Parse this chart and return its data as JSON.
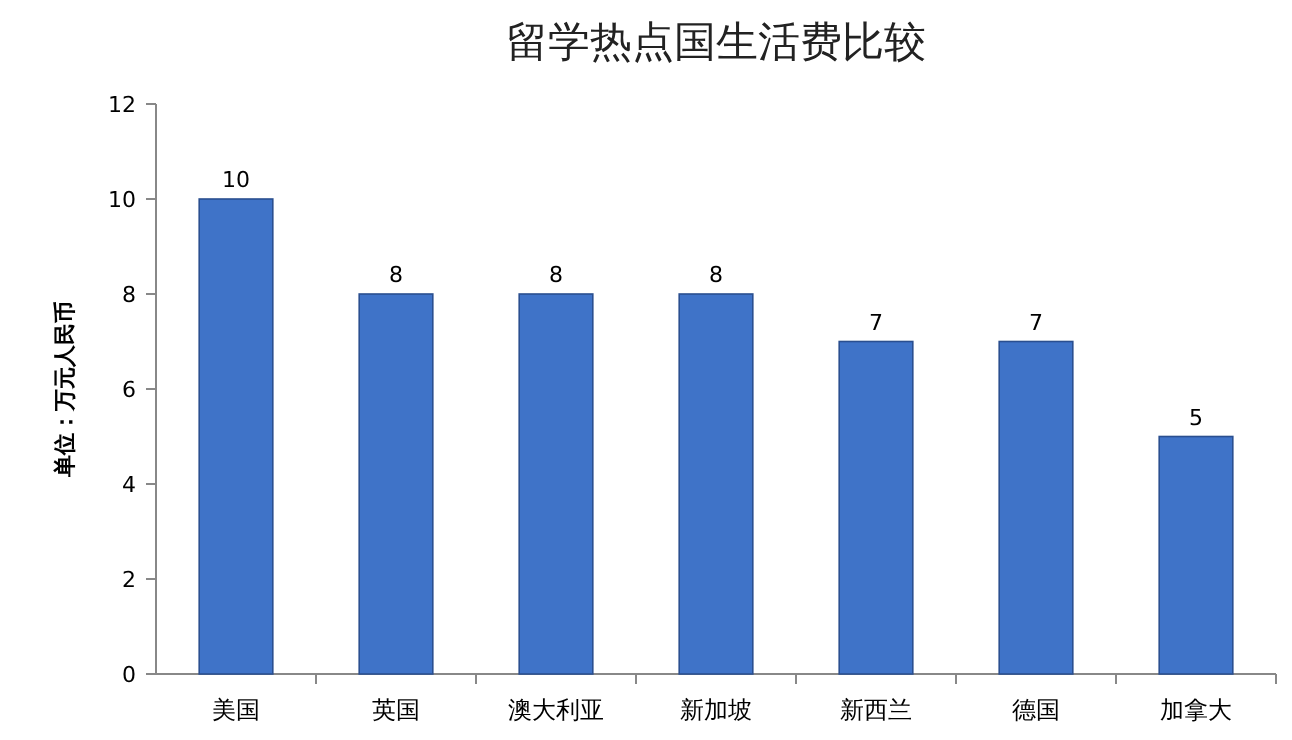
{
  "chart_data": {
    "type": "bar",
    "title": "留学热点国生活费比较",
    "ylabel": "单位：万元人民币",
    "categories": [
      "美国",
      "英国",
      "澳大利亚",
      "新加坡",
      "新西兰",
      "德国",
      "加拿大"
    ],
    "values": [
      10,
      8,
      8,
      8,
      7,
      7,
      5
    ],
    "color": "#3f73c8",
    "ylim": [
      0,
      12
    ],
    "yticks": [
      0,
      2,
      4,
      6,
      8,
      10,
      12
    ],
    "data_labels": true,
    "grid": false
  }
}
